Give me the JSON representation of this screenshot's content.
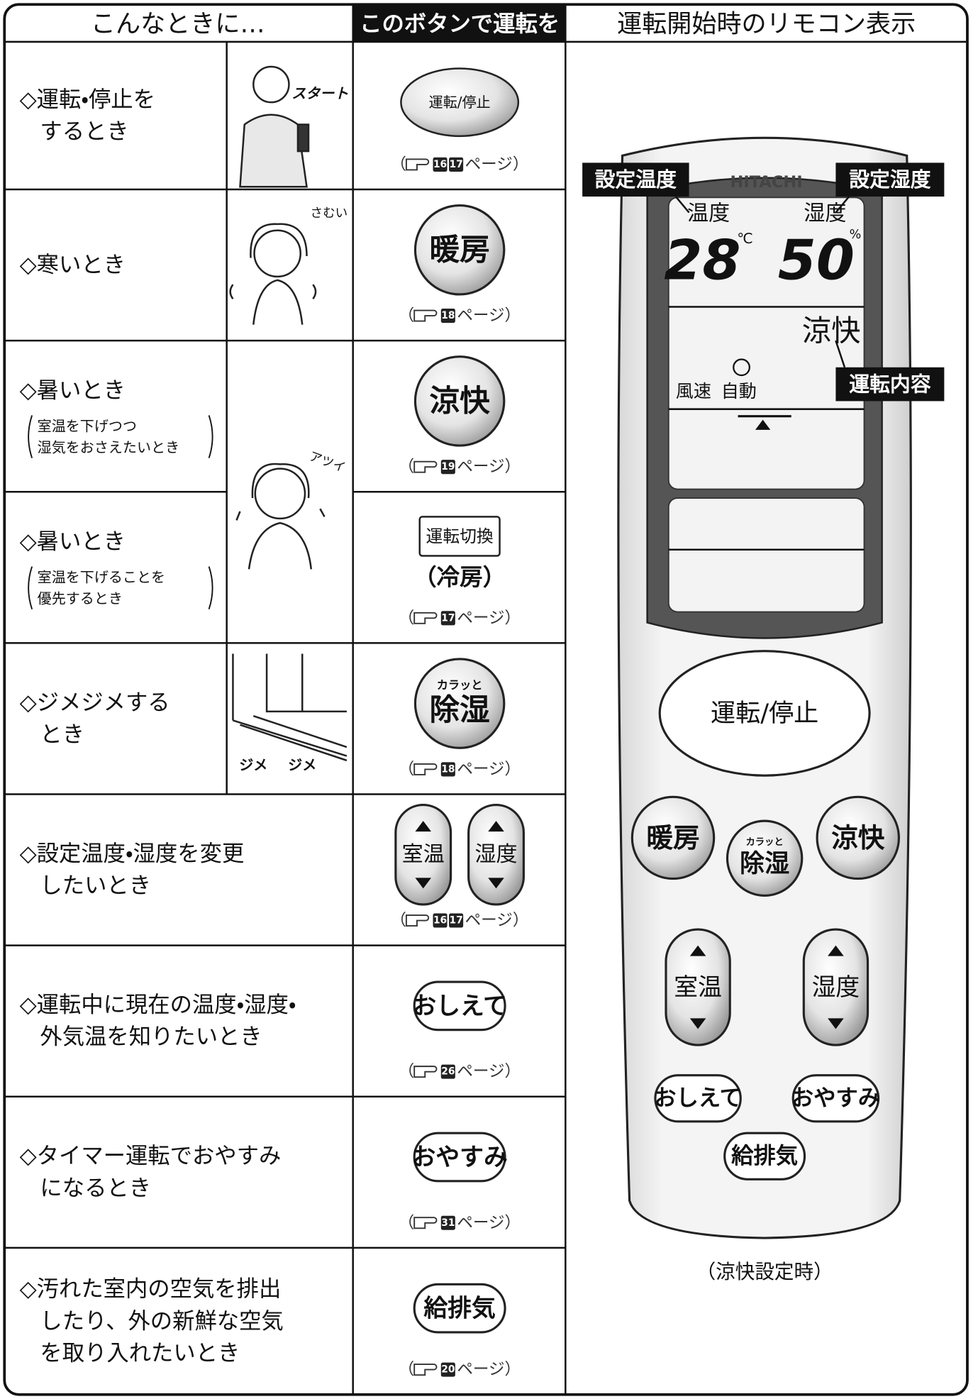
{
  "header": {
    "columns": [
      "こんなときに…",
      "このボタンで運転を",
      "運転開始時のリモコン表示"
    ]
  },
  "ref": {
    "open": "（",
    "close": "ページ）"
  },
  "rows": [
    {
      "label": [
        "◇運転・停止を",
        "するとき"
      ],
      "illustration": [
        "スタート"
      ],
      "button": [
        "運転/停止"
      ],
      "pages": [
        "16",
        "17"
      ]
    },
    {
      "label": [
        "◇寒いとき"
      ],
      "illustration": [
        "さむい"
      ],
      "button": [
        "暖房"
      ],
      "pages": [
        "18"
      ]
    },
    {
      "label": [
        "◇暑いとき"
      ],
      "note": [
        "室温を下げつつ",
        "湿気をおさえたいとき"
      ],
      "illustration": [
        "アツイ"
      ],
      "button": [
        "涼快"
      ],
      "pages": [
        "19"
      ]
    },
    {
      "label": [
        "◇暑いとき"
      ],
      "note": [
        "室温を下げることを",
        "優先するとき"
      ],
      "button": [
        "運転切換"
      ],
      "button_sub": "（冷房）",
      "pages": [
        "17"
      ]
    },
    {
      "label": [
        "◇ジメジメする",
        "とき"
      ],
      "illustration": [
        "ジメ",
        "ジメ"
      ],
      "button_small": "カラッと",
      "button": [
        "除湿"
      ],
      "pages": [
        "18"
      ]
    },
    {
      "label": [
        "◇設定温度・湿度を変更",
        "したいとき"
      ],
      "button": [
        "室温",
        "湿度"
      ],
      "pages": [
        "16",
        "17"
      ]
    },
    {
      "label": [
        "◇運転中に現在の温度・湿度・",
        "外気温を知りたいとき"
      ],
      "button": [
        "おしえて"
      ],
      "pages": [
        "26"
      ]
    },
    {
      "label": [
        "◇タイマー運転でおやすみ",
        "になるとき"
      ],
      "button": [
        "おやすみ"
      ],
      "pages": [
        "31"
      ]
    },
    {
      "label": [
        "◇汚れた室内の空気を排出",
        "したり、外の新鮮な空気",
        "を取り入れたいとき"
      ],
      "button": [
        "給排気"
      ],
      "pages": [
        "20"
      ]
    }
  ],
  "remote": {
    "callout_temp": "設定温度",
    "callout_hum": "設定湿度",
    "callout_mode": "運転内容",
    "brand": "HITACHI",
    "temp_label": "温度",
    "hum_label": "湿度",
    "temp": "28",
    "temp_unit": "℃",
    "hum": "50",
    "hum_unit": "%",
    "mode": "涼快",
    "fan": [
      "風速",
      "自動"
    ],
    "start_stop": "運転/停止",
    "heat": "暖房",
    "dry_small": "カラッと",
    "dry": "除湿",
    "cool": "涼快",
    "room_temp": "室温",
    "humidity": "湿度",
    "info": "おしえて",
    "sleep": "おやすみ",
    "vent": "給排気",
    "caption": "（涼快設定時）"
  }
}
